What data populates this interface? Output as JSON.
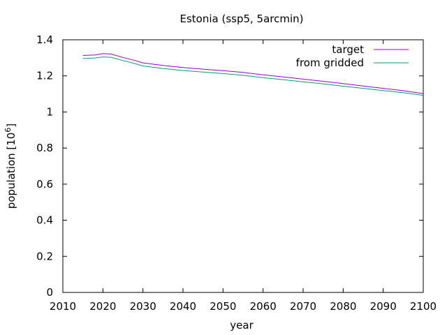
{
  "chart_data": {
    "type": "line",
    "title": "Estonia (ssp5, 5arcmin)",
    "xlabel": "year",
    "ylabel": "population [10",
    "ylabel_sup": "6",
    "ylabel_end": "]",
    "xlim": [
      2010,
      2100
    ],
    "ylim": [
      0,
      1.4
    ],
    "xticks": [
      2010,
      2020,
      2030,
      2040,
      2050,
      2060,
      2070,
      2080,
      2090,
      2100
    ],
    "yticks": [
      "0",
      "0.2",
      "0.4",
      "0.6",
      "0.8",
      "1",
      "1.2",
      "1.4"
    ],
    "legend_position": "top-right",
    "grid": false,
    "series": [
      {
        "name": "target",
        "color": "#9400d3",
        "x": [
          2015,
          2018,
          2020,
          2022,
          2025,
          2028,
          2030,
          2035,
          2040,
          2045,
          2050,
          2055,
          2060,
          2065,
          2070,
          2075,
          2080,
          2085,
          2090,
          2095,
          2100
        ],
        "y": [
          1.313,
          1.316,
          1.323,
          1.321,
          1.302,
          1.285,
          1.272,
          1.258,
          1.246,
          1.237,
          1.229,
          1.219,
          1.206,
          1.194,
          1.182,
          1.17,
          1.157,
          1.144,
          1.131,
          1.118,
          1.102
        ]
      },
      {
        "name": "from gridded",
        "color": "#009e73",
        "x": [
          2015,
          2018,
          2020,
          2022,
          2025,
          2028,
          2030,
          2035,
          2040,
          2045,
          2050,
          2055,
          2060,
          2065,
          2070,
          2075,
          2080,
          2085,
          2090,
          2095,
          2100
        ],
        "y": [
          1.296,
          1.299,
          1.305,
          1.303,
          1.285,
          1.268,
          1.255,
          1.241,
          1.23,
          1.221,
          1.213,
          1.203,
          1.19,
          1.179,
          1.167,
          1.156,
          1.143,
          1.131,
          1.119,
          1.107,
          1.092
        ]
      }
    ]
  }
}
